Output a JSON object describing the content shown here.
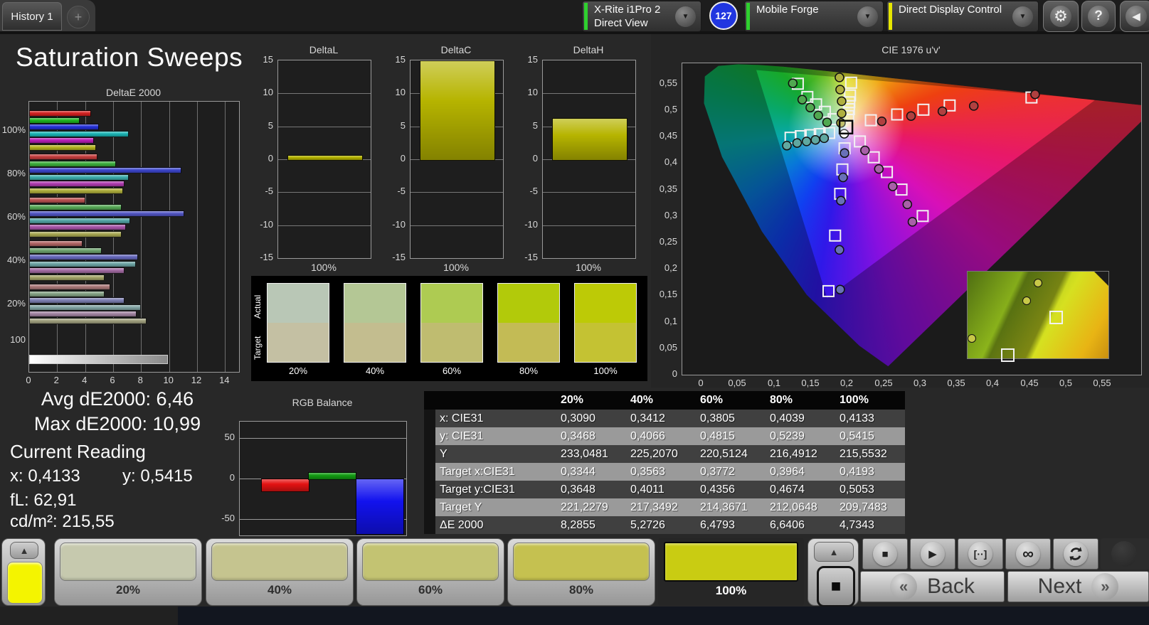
{
  "titlebar": {
    "tab_label": "History 1",
    "add_tab_label": "+",
    "meter": {
      "line1": "X-Rite i1Pro 2",
      "line2": "Direct View",
      "accent": "#2fd02f"
    },
    "badge_count": "127",
    "source": {
      "label": "Mobile Forge",
      "accent": "#2fd02f"
    },
    "workflow": {
      "label": "Direct Display Control",
      "accent": "#e6e600"
    },
    "settings_icon": "⚙",
    "help_icon": "?",
    "collapse_icon": "◀",
    "dropdown_icon": "▼"
  },
  "page_title": "Saturation Sweeps",
  "stats": {
    "avg_label": "Avg dE2000:",
    "avg_value": "6,46",
    "max_label": "Max dE2000:",
    "max_value": "10,99",
    "current_label": "Current Reading",
    "x_label": "x:",
    "x_value": "0,4133",
    "y_label": "y:",
    "y_value": "0,5415",
    "fl_label": "fL:",
    "fl_value": "62,91",
    "cd_label": "cd/m²:",
    "cd_value": "215,55"
  },
  "swatch_compare": {
    "row_labels": [
      "Actual",
      "Target"
    ],
    "levels": [
      "20%",
      "40%",
      "60%",
      "80%",
      "100%"
    ],
    "actual_colors": [
      "#b9c7b6",
      "#b4c795",
      "#aecb52",
      "#b2ca0a",
      "#bdca06"
    ],
    "target_colors": [
      "#c4c0a3",
      "#c3bd8f",
      "#bfbc70",
      "#c3bb55",
      "#c4c233"
    ]
  },
  "chart_data": [
    {
      "type": "bar",
      "orientation": "horizontal",
      "title": "DeltaE 2000",
      "categories": [
        "100%",
        "80%",
        "60%",
        "40%",
        "20%"
      ],
      "series": [
        {
          "name": "Red",
          "values": [
            4.3,
            4.8,
            3.9,
            3.7,
            5.7
          ],
          "colors": [
            "#d42020",
            "#c53e3e",
            "#bb5252",
            "#b26666",
            "#aa7878"
          ]
        },
        {
          "name": "Green",
          "values": [
            3.5,
            6.1,
            6.5,
            5.1,
            5.3
          ],
          "colors": [
            "#1eb41e",
            "#3cae3c",
            "#55a855",
            "#6ea46e",
            "#84a284"
          ]
        },
        {
          "name": "Blue",
          "values": [
            4.9,
            10.8,
            11.0,
            7.7,
            6.7
          ],
          "colors": [
            "#2430d8",
            "#3c46cc",
            "#5256c4",
            "#6668bc",
            "#7e80b4"
          ]
        },
        {
          "name": "Cyan",
          "values": [
            7.0,
            7.0,
            7.1,
            7.5,
            7.9
          ],
          "colors": [
            "#1ab4b4",
            "#3cacac",
            "#54a6a6",
            "#6ca4a4",
            "#82a4a4"
          ]
        },
        {
          "name": "Magenta",
          "values": [
            4.5,
            6.7,
            6.8,
            6.7,
            7.6
          ],
          "colors": [
            "#b81eb8",
            "#b03cb0",
            "#a854a8",
            "#a46ca4",
            "#a284a2"
          ]
        },
        {
          "name": "Yellow",
          "values": [
            4.7,
            6.6,
            6.5,
            5.3,
            8.3
          ],
          "colors": [
            "#b4b41e",
            "#aeae3c",
            "#a8a852",
            "#a4a468",
            "#a0a07e"
          ]
        }
      ],
      "grayscale_bar": {
        "label": "100",
        "value": 9.8
      },
      "xlim": [
        0,
        15
      ],
      "xticks": [
        0,
        2,
        4,
        6,
        8,
        10,
        12,
        14
      ]
    },
    {
      "type": "bar",
      "title": "DeltaL",
      "categories": [
        "100%"
      ],
      "values": [
        0.7
      ],
      "ylim": [
        -15,
        15
      ],
      "yticks": [
        15,
        10,
        5,
        0,
        -5,
        -10,
        -15
      ],
      "bar_color": "#b6b400"
    },
    {
      "type": "bar",
      "title": "DeltaC",
      "categories": [
        "100%"
      ],
      "values": [
        15.2
      ],
      "ylim": [
        -15,
        15
      ],
      "yticks": [
        15,
        10,
        5,
        0,
        -5,
        -10,
        -15
      ],
      "bar_color": "#b6b400"
    },
    {
      "type": "bar",
      "title": "DeltaH",
      "categories": [
        "100%"
      ],
      "values": [
        6.3
      ],
      "ylim": [
        -15,
        15
      ],
      "yticks": [
        15,
        10,
        5,
        0,
        -5,
        -10,
        -15
      ],
      "bar_color": "#b6b400"
    },
    {
      "type": "scatter",
      "title": "CIE 1976 u'v'",
      "xtick_labels": [
        "0",
        "0,05",
        "0,1",
        "0,15",
        "0,2",
        "0,25",
        "0,3",
        "0,35",
        "0,4",
        "0,45",
        "0,5",
        "0,55"
      ],
      "xtick_values": [
        0,
        0.05,
        0.1,
        0.15,
        0.2,
        0.25,
        0.3,
        0.35,
        0.4,
        0.45,
        0.5,
        0.55
      ],
      "ytick_labels": [
        "0",
        "0,05",
        "0,1",
        "0,15",
        "0,2",
        "0,25",
        "0,3",
        "0,35",
        "0,4",
        "0,45",
        "0,5",
        "0,55"
      ],
      "ytick_values": [
        0,
        0.05,
        0.1,
        0.15,
        0.2,
        0.25,
        0.3,
        0.35,
        0.4,
        0.45,
        0.5,
        0.55
      ],
      "locus": [
        [
          0.2557,
          0.0159
        ],
        [
          0.2161,
          0.0549
        ],
        [
          0.1441,
          0.151
        ],
        [
          0.0828,
          0.2708
        ],
        [
          0.0282,
          0.4117
        ],
        [
          0.0035,
          0.5131
        ],
        [
          0.0046,
          0.5638
        ],
        [
          0.0231,
          0.5837
        ],
        [
          0.0501,
          0.5868
        ],
        [
          0.0792,
          0.5856
        ],
        [
          0.1127,
          0.5821
        ],
        [
          0.1531,
          0.5766
        ],
        [
          0.2026,
          0.5694
        ],
        [
          0.2623,
          0.5604
        ],
        [
          0.3315,
          0.5501
        ],
        [
          0.4035,
          0.5393
        ],
        [
          0.4691,
          0.5296
        ],
        [
          0.5202,
          0.5219
        ],
        [
          0.5565,
          0.5165
        ],
        [
          0.6234,
          0.5065
        ]
      ],
      "gamut_triangle": [
        [
          0.075,
          0.576
        ],
        [
          0.54,
          0.52
        ],
        [
          0.172,
          0.145
        ]
      ],
      "white_point": [
        0.198,
        0.468
      ],
      "highlight": [
        0.198,
        0.468
      ],
      "targets": [
        [
          0.232,
          0.481
        ],
        [
          0.268,
          0.492
        ],
        [
          0.304,
          0.501
        ],
        [
          0.34,
          0.509
        ],
        [
          0.452,
          0.524
        ],
        [
          0.201,
          0.489
        ],
        [
          0.202,
          0.502
        ],
        [
          0.2025,
          0.515
        ],
        [
          0.2035,
          0.528
        ],
        [
          0.205,
          0.552
        ],
        [
          0.181,
          0.483
        ],
        [
          0.169,
          0.497
        ],
        [
          0.157,
          0.511
        ],
        [
          0.145,
          0.525
        ],
        [
          0.132,
          0.55
        ],
        [
          0.175,
          0.457
        ],
        [
          0.162,
          0.455
        ],
        [
          0.149,
          0.453
        ],
        [
          0.136,
          0.451
        ],
        [
          0.122,
          0.448
        ],
        [
          0.217,
          0.441
        ],
        [
          0.236,
          0.411
        ],
        [
          0.254,
          0.383
        ],
        [
          0.274,
          0.35
        ],
        [
          0.303,
          0.3
        ],
        [
          0.196,
          0.428
        ],
        [
          0.193,
          0.388
        ],
        [
          0.19,
          0.342
        ],
        [
          0.183,
          0.263
        ],
        [
          0.174,
          0.158
        ]
      ],
      "measured": [
        {
          "c": "#b04040",
          "pts": [
            [
              0.247,
              0.479
            ],
            [
              0.287,
              0.489
            ],
            [
              0.33,
              0.498
            ],
            [
              0.373,
              0.508
            ],
            [
              0.457,
              0.53
            ]
          ]
        },
        {
          "c": "#b0b040",
          "pts": [
            [
              0.191,
              0.476
            ],
            [
              0.192,
              0.494
            ],
            [
              0.192,
              0.517
            ],
            [
              0.19,
              0.539
            ],
            [
              0.189,
              0.562
            ]
          ]
        },
        {
          "c": "#50a850",
          "pts": [
            [
              0.172,
              0.477
            ],
            [
              0.16,
              0.49
            ],
            [
              0.149,
              0.505
            ],
            [
              0.138,
              0.52
            ],
            [
              0.125,
              0.551
            ]
          ]
        },
        {
          "c": "#60a8a0",
          "pts": [
            [
              0.168,
              0.447
            ],
            [
              0.156,
              0.444
            ],
            [
              0.144,
              0.441
            ],
            [
              0.131,
              0.438
            ],
            [
              0.117,
              0.433
            ]
          ]
        },
        {
          "c": "#a860a8",
          "pts": [
            [
              0.224,
              0.424
            ],
            [
              0.243,
              0.389
            ],
            [
              0.262,
              0.356
            ],
            [
              0.282,
              0.322
            ],
            [
              0.289,
              0.289
            ]
          ]
        },
        {
          "c": "#6870b8",
          "pts": [
            [
              0.196,
              0.419
            ],
            [
              0.194,
              0.373
            ],
            [
              0.191,
              0.329
            ],
            [
              0.189,
              0.236
            ],
            [
              0.19,
              0.161
            ]
          ]
        },
        {
          "c": "#ffffff",
          "pts": [
            [
              0.1955,
              0.4555
            ]
          ]
        }
      ],
      "inset": {
        "squares": [
          [
            0.62,
            0.52
          ],
          [
            0.28,
            0.95
          ]
        ],
        "circles": [
          [
            0.5,
            0.13
          ],
          [
            0.42,
            0.34
          ],
          [
            0.03,
            0.77
          ]
        ]
      }
    },
    {
      "type": "bar",
      "title": "RGB Balance",
      "category": "100%",
      "series": [
        {
          "name": "Red",
          "value": -15,
          "color": "#e41212"
        },
        {
          "name": "Green",
          "value": 8,
          "color": "#129c12"
        },
        {
          "name": "Blue",
          "value": -67,
          "color": "#1212ee"
        }
      ],
      "ylim": [
        -70,
        70
      ],
      "yticks": [
        50,
        0,
        -50
      ]
    },
    {
      "type": "table",
      "columns": [
        "20%",
        "40%",
        "60%",
        "80%",
        "100%"
      ],
      "rows": [
        {
          "label": "x: CIE31",
          "values": [
            "0,3090",
            "0,3412",
            "0,3805",
            "0,4039",
            "0,4133"
          ]
        },
        {
          "label": "y: CIE31",
          "values": [
            "0,3468",
            "0,4066",
            "0,4815",
            "0,5239",
            "0,5415"
          ]
        },
        {
          "label": "Y",
          "values": [
            "233,0481",
            "225,2070",
            "220,5124",
            "216,4912",
            "215,5532"
          ]
        },
        {
          "label": "Target x:CIE31",
          "values": [
            "0,3344",
            "0,3563",
            "0,3772",
            "0,3964",
            "0,4193"
          ]
        },
        {
          "label": "Target y:CIE31",
          "values": [
            "0,3648",
            "0,4011",
            "0,4356",
            "0,4674",
            "0,5053"
          ]
        },
        {
          "label": "Target Y",
          "values": [
            "221,2279",
            "217,3492",
            "214,3671",
            "212,0648",
            "209,7483"
          ]
        },
        {
          "label": "ΔE 2000",
          "values": [
            "8,2855",
            "5,2726",
            "6,4793",
            "6,6406",
            "4,7343"
          ]
        }
      ]
    }
  ],
  "bottom_bar": {
    "up_icon": "▲",
    "current_color": "#f4f400",
    "swatches": [
      {
        "label": "20%",
        "color": "#c6c9ae",
        "selected": false
      },
      {
        "label": "40%",
        "color": "#c5c48f",
        "selected": false
      },
      {
        "label": "60%",
        "color": "#c3c372",
        "selected": false
      },
      {
        "label": "80%",
        "color": "#c5c150",
        "selected": false
      },
      {
        "label": "100%",
        "color": "#c9cc12",
        "selected": true
      }
    ],
    "pattern_icon": "■",
    "transport": [
      {
        "name": "stop",
        "glyph": "■"
      },
      {
        "name": "play",
        "glyph": "▶"
      },
      {
        "name": "interval",
        "glyph": "[··]"
      },
      {
        "name": "loop",
        "glyph": "∞"
      },
      {
        "name": "refresh",
        "glyph": "svg"
      }
    ],
    "back_icon": "«",
    "back_label": "Back",
    "next_label": "Next",
    "next_icon": "»"
  }
}
